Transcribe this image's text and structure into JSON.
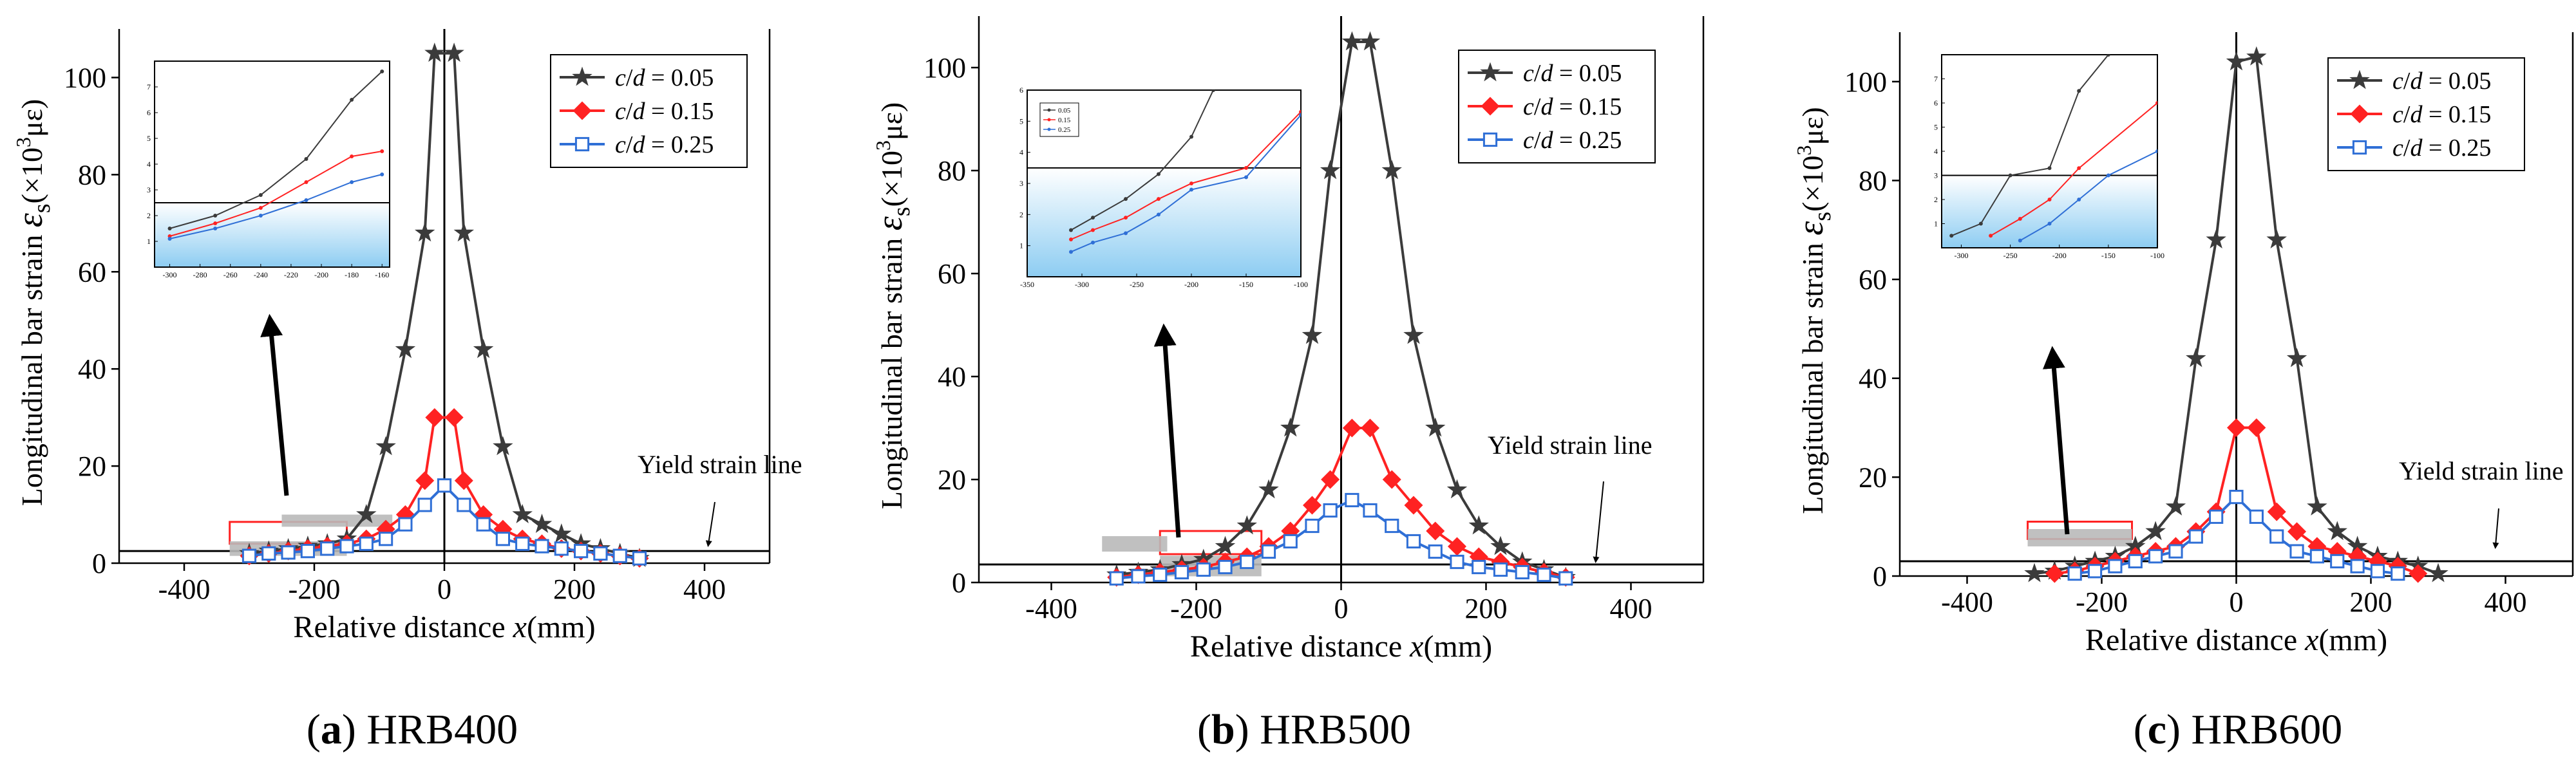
{
  "figure": {
    "captions": [
      {
        "letter": "a",
        "text": " HRB400"
      },
      {
        "letter": "b",
        "text": " HRB500"
      },
      {
        "letter": "c",
        "text": " HRB600"
      }
    ],
    "yield_label": "Yield strain line",
    "colors": {
      "s005": "#3b3b3b",
      "s015": "#ff2222",
      "s025": "#2f6fd6",
      "axis": "#000000"
    }
  },
  "chart_data": [
    {
      "type": "line",
      "panel": "a",
      "xlabel": "Relative distance x(mm)",
      "ylabel": "Longitudinal bar strain εs(×10³με)",
      "xlim": [
        -500,
        500
      ],
      "ylim": [
        0,
        110
      ],
      "xticks": [
        -400,
        -200,
        0,
        200,
        400
      ],
      "yticks": [
        0,
        20,
        40,
        60,
        80,
        100
      ],
      "yield_strain": 2.5,
      "legend_position": "top-right",
      "series": [
        {
          "name": "c/d = 0.05",
          "marker": "star",
          "x": [
            -300,
            -270,
            -240,
            -210,
            -180,
            -150,
            -120,
            -90,
            -60,
            -30,
            -15,
            15,
            30,
            60,
            90,
            120,
            150,
            180,
            210,
            240,
            270,
            300
          ],
          "y": [
            2,
            2.5,
            3,
            3.5,
            4,
            5,
            10,
            24,
            44,
            68,
            105,
            105,
            68,
            44,
            24,
            10,
            8,
            6,
            4,
            3,
            2,
            1
          ]
        },
        {
          "name": "c/d = 0.15",
          "marker": "diamond",
          "x": [
            -300,
            -270,
            -240,
            -210,
            -180,
            -150,
            -120,
            -90,
            -60,
            -30,
            -15,
            15,
            30,
            60,
            90,
            120,
            150,
            180,
            210,
            240,
            270,
            300
          ],
          "y": [
            1.5,
            2,
            2.5,
            3,
            3.5,
            4,
            5,
            7,
            10,
            17,
            30,
            30,
            17,
            10,
            7,
            5,
            4,
            3,
            2.5,
            2,
            1.5,
            1
          ]
        },
        {
          "name": "c/d = 0.25",
          "marker": "square",
          "x": [
            -300,
            -270,
            -240,
            -210,
            -180,
            -150,
            -120,
            -90,
            -60,
            -30,
            0,
            30,
            60,
            90,
            120,
            150,
            180,
            210,
            240,
            270,
            300
          ],
          "y": [
            1.5,
            2,
            2.2,
            2.5,
            3,
            3.5,
            4,
            5,
            8,
            12,
            16,
            12,
            8,
            5,
            4,
            3.5,
            3,
            2.5,
            2,
            1.5,
            1
          ]
        }
      ],
      "inset": {
        "xlim": [
          -310,
          -155
        ],
        "ylim": [
          0,
          8
        ],
        "xticks": [
          -300,
          -280,
          -260,
          -240,
          -220,
          -200,
          -180,
          -160
        ],
        "yticks": [
          1,
          2,
          3,
          4,
          5,
          6,
          7
        ],
        "yield_strain": 2.5,
        "series": [
          {
            "name": "c/d = 0.05",
            "x": [
              -300,
              -270,
              -240,
              -210,
              -180,
              -160
            ],
            "y": [
              1.5,
              2,
              2.8,
              4.2,
              6.5,
              7.6
            ]
          },
          {
            "name": "c/d = 0.15",
            "x": [
              -300,
              -270,
              -240,
              -210,
              -180,
              -160
            ],
            "y": [
              1.2,
              1.7,
              2.3,
              3.3,
              4.3,
              4.5
            ]
          },
          {
            "name": "c/d = 0.25",
            "x": [
              -300,
              -270,
              -240,
              -210,
              -180,
              -160
            ],
            "y": [
              1.1,
              1.5,
              2.0,
              2.6,
              3.3,
              3.6
            ]
          }
        ]
      }
    },
    {
      "type": "line",
      "panel": "b",
      "xlabel": "Relative distance x(mm)",
      "ylabel": "Longitudinal bar strain εs(×10³με)",
      "xlim": [
        -500,
        500
      ],
      "ylim": [
        0,
        110
      ],
      "xticks": [
        -400,
        -200,
        0,
        200,
        400
      ],
      "yticks": [
        0,
        20,
        40,
        60,
        80,
        100
      ],
      "yield_strain": 3.5,
      "legend_position": "top-right",
      "series": [
        {
          "name": "c/d = 0.05",
          "marker": "star",
          "x": [
            -310,
            -280,
            -250,
            -220,
            -190,
            -160,
            -130,
            -100,
            -70,
            -40,
            -15,
            15,
            40,
            70,
            100,
            130,
            160,
            190,
            220,
            250,
            280,
            310
          ],
          "y": [
            1.5,
            2,
            2.5,
            3.5,
            4.5,
            7,
            11,
            18,
            30,
            48,
            80,
            105,
            105,
            80,
            48,
            30,
            18,
            11,
            7,
            4,
            2.5,
            1
          ]
        },
        {
          "name": "c/d = 0.15",
          "marker": "diamond",
          "x": [
            -310,
            -280,
            -250,
            -220,
            -190,
            -160,
            -130,
            -100,
            -70,
            -40,
            -15,
            15,
            40,
            70,
            100,
            130,
            160,
            190,
            220,
            250,
            280,
            310
          ],
          "y": [
            1,
            1.5,
            2,
            2.5,
            3,
            4,
            5,
            7,
            10,
            15,
            20,
            30,
            30,
            20,
            15,
            10,
            7,
            5,
            4,
            3,
            2,
            1
          ]
        },
        {
          "name": "c/d = 0.25",
          "marker": "square",
          "x": [
            -310,
            -280,
            -250,
            -220,
            -190,
            -160,
            -130,
            -100,
            -70,
            -40,
            -15,
            15,
            40,
            70,
            100,
            130,
            160,
            190,
            220,
            250,
            280,
            310
          ],
          "y": [
            0.8,
            1.2,
            1.5,
            2,
            2.5,
            3,
            4,
            6,
            8,
            11,
            14,
            16,
            14,
            11,
            8,
            6,
            4,
            3,
            2.5,
            2,
            1.5,
            0.8
          ]
        }
      ],
      "inset": {
        "xlim": [
          -350,
          -100
        ],
        "ylim": [
          0,
          6
        ],
        "xticks": [
          -350,
          -300,
          -250,
          -200,
          -150,
          -100
        ],
        "yticks": [
          1,
          2,
          3,
          4,
          5,
          6
        ],
        "yield_strain": 3.5,
        "legend": [
          "0.05",
          "0.15",
          "0.25"
        ],
        "series": [
          {
            "name": "c/d = 0.05",
            "x": [
              -310,
              -290,
              -260,
              -230,
              -200,
              -180
            ],
            "y": [
              1.5,
              1.9,
              2.5,
              3.3,
              4.5,
              6
            ]
          },
          {
            "name": "c/d = 0.15",
            "x": [
              -310,
              -290,
              -260,
              -230,
              -200,
              -150,
              -100
            ],
            "y": [
              1.2,
              1.5,
              1.9,
              2.5,
              3.0,
              3.5,
              5.3
            ]
          },
          {
            "name": "c/d = 0.25",
            "x": [
              -310,
              -290,
              -260,
              -230,
              -200,
              -150,
              -100
            ],
            "y": [
              0.8,
              1.1,
              1.4,
              2.0,
              2.8,
              3.2,
              5.2
            ]
          }
        ]
      }
    },
    {
      "type": "line",
      "panel": "c",
      "xlabel": "Relative distance x(mm)",
      "ylabel": "Longitudinal bar strain εs(×10³με)",
      "xlim": [
        -500,
        500
      ],
      "ylim": [
        0,
        110
      ],
      "xticks": [
        -400,
        -200,
        0,
        200,
        400
      ],
      "yticks": [
        0,
        20,
        40,
        60,
        80,
        100
      ],
      "yield_strain": 3.0,
      "legend_position": "top-right",
      "series": [
        {
          "name": "c/d = 0.05",
          "marker": "star",
          "x": [
            -300,
            -270,
            -240,
            -210,
            -180,
            -150,
            -120,
            -90,
            -60,
            -30,
            0,
            30,
            60,
            90,
            120,
            150,
            180,
            210,
            240,
            270,
            300
          ],
          "y": [
            0.5,
            1,
            2,
            3,
            4,
            6,
            9,
            14,
            44,
            68,
            104,
            105,
            68,
            44,
            14,
            9,
            6,
            4,
            3,
            2,
            0.5
          ]
        },
        {
          "name": "c/d = 0.15",
          "marker": "diamond",
          "x": [
            -270,
            -240,
            -210,
            -180,
            -150,
            -120,
            -90,
            -60,
            -30,
            0,
            30,
            60,
            90,
            120,
            150,
            180,
            210,
            240,
            270
          ],
          "y": [
            0.5,
            1,
            2,
            3,
            4,
            5,
            6,
            9,
            13,
            30,
            30,
            13,
            9,
            6,
            5,
            4,
            3,
            2,
            0.5
          ]
        },
        {
          "name": "c/d = 0.25",
          "marker": "square",
          "x": [
            -240,
            -210,
            -180,
            -150,
            -120,
            -90,
            -60,
            -30,
            0,
            30,
            60,
            90,
            120,
            150,
            180,
            210,
            240
          ],
          "y": [
            0.5,
            1,
            2,
            3,
            4,
            5,
            8,
            12,
            16,
            12,
            8,
            5,
            4,
            3,
            2,
            1,
            0.5
          ]
        }
      ],
      "inset": {
        "xlim": [
          -320,
          -100
        ],
        "ylim": [
          0,
          8
        ],
        "xticks": [
          -300,
          -250,
          -200,
          -150,
          -100
        ],
        "yticks": [
          1,
          2,
          3,
          4,
          5,
          6,
          7
        ],
        "yield_strain": 3.0,
        "series": [
          {
            "name": "c/d = 0.05",
            "x": [
              -310,
              -280,
              -250,
              -210,
              -180,
              -150
            ],
            "y": [
              0.5,
              1.0,
              3.0,
              3.3,
              6.5,
              8.0
            ]
          },
          {
            "name": "c/d = 0.15",
            "x": [
              -270,
              -240,
              -210,
              -180,
              -100
            ],
            "y": [
              0.5,
              1.2,
              2.0,
              3.3,
              6.0
            ]
          },
          {
            "name": "c/d = 0.25",
            "x": [
              -240,
              -210,
              -180,
              -150,
              -100
            ],
            "y": [
              0.3,
              1.0,
              2.0,
              3.0,
              4.0
            ]
          }
        ]
      }
    }
  ]
}
